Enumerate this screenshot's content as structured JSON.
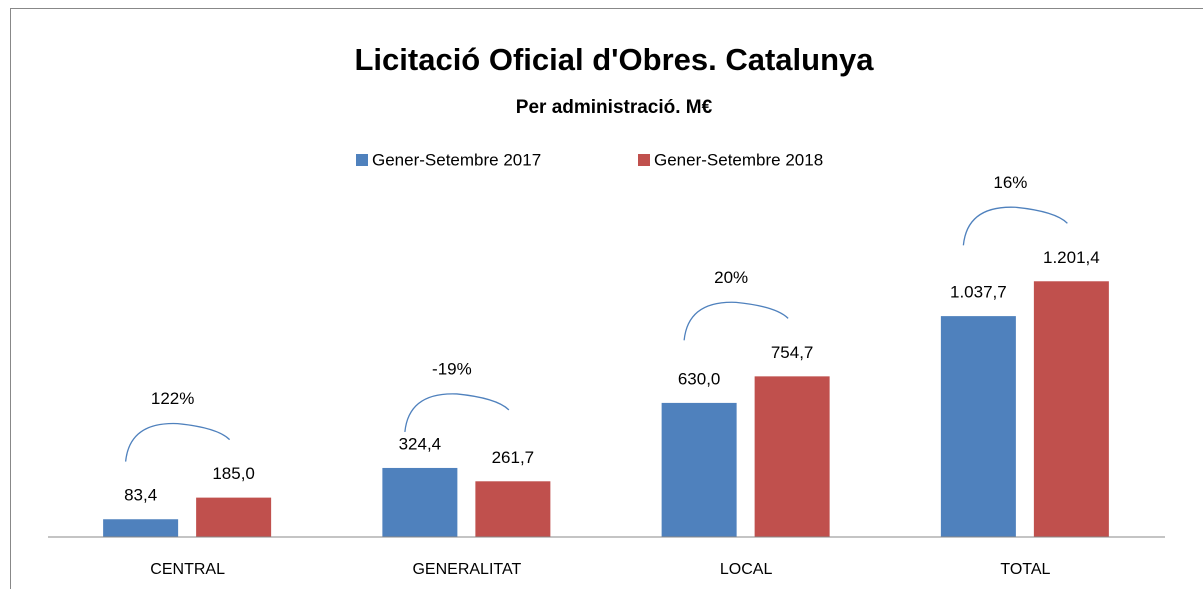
{
  "chart_data": {
    "type": "bar",
    "title": "Licitació Oficial d'Obres. Catalunya",
    "subtitle": "Per administració. M€",
    "categories": [
      "CENTRAL",
      "GENERALITAT",
      "LOCAL",
      "TOTAL"
    ],
    "series": [
      {
        "name": "Gener-Setembre 2017",
        "color": "#4f81bd",
        "values": [
          83.4,
          324.4,
          630.0,
          1037.7
        ],
        "value_labels": [
          "83,4",
          "324,4",
          "630,0",
          "1.037,7"
        ]
      },
      {
        "name": "Gener-Setembre 2018",
        "color": "#c0504d",
        "values": [
          185.0,
          261.7,
          754.7,
          1201.4
        ],
        "value_labels": [
          "185,0",
          "261,7",
          "754,7",
          "1.201,4"
        ]
      }
    ],
    "annotations": [
      "122%",
      "-19%",
      "20%",
      "16%"
    ],
    "ylim": [
      0,
      1400
    ],
    "legend": "top"
  }
}
